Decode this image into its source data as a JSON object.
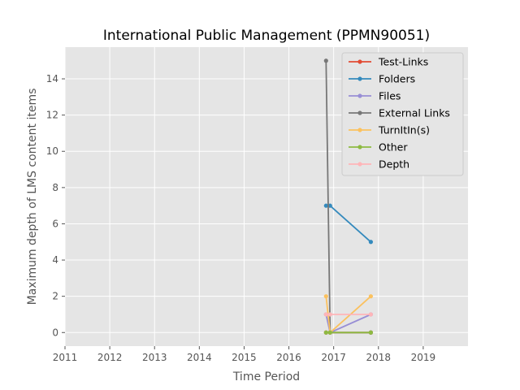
{
  "chart_data": {
    "type": "line",
    "title": "International Public Management (PPMN90051)",
    "xlabel": "Time Period",
    "ylabel": "Maximum depth of LMS content items",
    "xlim": [
      2011,
      2020
    ],
    "ylim": [
      -0.75,
      15.75
    ],
    "x_ticks": [
      "2011",
      "2012",
      "2013",
      "2014",
      "2015",
      "2016",
      "2017",
      "2018",
      "2019"
    ],
    "y_ticks": [
      "0",
      "2",
      "4",
      "6",
      "8",
      "10",
      "12",
      "14"
    ],
    "grid": true,
    "legend_position": "upper right",
    "series": [
      {
        "name": "Test-Links",
        "color": "#E24A33",
        "x": [
          2016.83,
          2016.92,
          2017.83
        ],
        "y": [
          0,
          0,
          0
        ]
      },
      {
        "name": "Folders",
        "color": "#348ABD",
        "x": [
          2016.83,
          2016.92,
          2017.83
        ],
        "y": [
          7,
          7,
          5
        ]
      },
      {
        "name": "Files",
        "color": "#988ED5",
        "x": [
          2016.83,
          2016.92,
          2017.83
        ],
        "y": [
          1,
          0,
          1
        ]
      },
      {
        "name": "External Links",
        "color": "#777777",
        "x": [
          2016.83,
          2016.92,
          2017.83
        ],
        "y": [
          15,
          0,
          0
        ]
      },
      {
        "name": "TurnItIn(s)",
        "color": "#FBC15E",
        "x": [
          2016.83,
          2016.92,
          2017.83
        ],
        "y": [
          2,
          0,
          2
        ]
      },
      {
        "name": "Other",
        "color": "#8EBA42",
        "x": [
          2016.83,
          2016.92,
          2017.83
        ],
        "y": [
          0,
          0,
          0
        ]
      },
      {
        "name": "Depth",
        "color": "#FFB5B8",
        "x": [
          2016.83,
          2016.92,
          2017.83
        ],
        "y": [
          1,
          1,
          1
        ]
      }
    ]
  }
}
